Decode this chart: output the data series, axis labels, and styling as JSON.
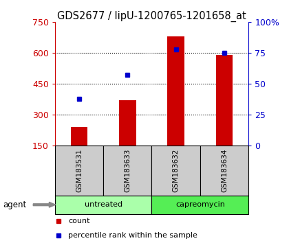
{
  "title": "GDS2677 / lipU-1200765-1201658_at",
  "samples": [
    "GSM183531",
    "GSM183633",
    "GSM183632",
    "GSM183634"
  ],
  "bar_values": [
    240,
    370,
    680,
    590
  ],
  "percentile_values": [
    38,
    57,
    78,
    75
  ],
  "left_ylim": [
    150,
    750
  ],
  "left_yticks": [
    150,
    300,
    450,
    600,
    750
  ],
  "right_ylim": [
    0,
    100
  ],
  "right_yticks": [
    0,
    25,
    50,
    75,
    100
  ],
  "right_yticklabels": [
    "0",
    "25",
    "50",
    "75",
    "100%"
  ],
  "bar_color": "#cc0000",
  "point_color": "#0000cc",
  "groups": [
    {
      "label": "untreated",
      "color": "#aaffaa",
      "indices": [
        0,
        1
      ]
    },
    {
      "label": "capreomycin",
      "color": "#55ee55",
      "indices": [
        2,
        3
      ]
    }
  ],
  "group_bg_color": "#cccccc",
  "legend_count_label": "count",
  "legend_pct_label": "percentile rank within the sample",
  "agent_label": "agent",
  "title_fontsize": 10.5,
  "tick_fontsize": 9,
  "figsize": [
    4.2,
    3.54
  ],
  "dpi": 100
}
